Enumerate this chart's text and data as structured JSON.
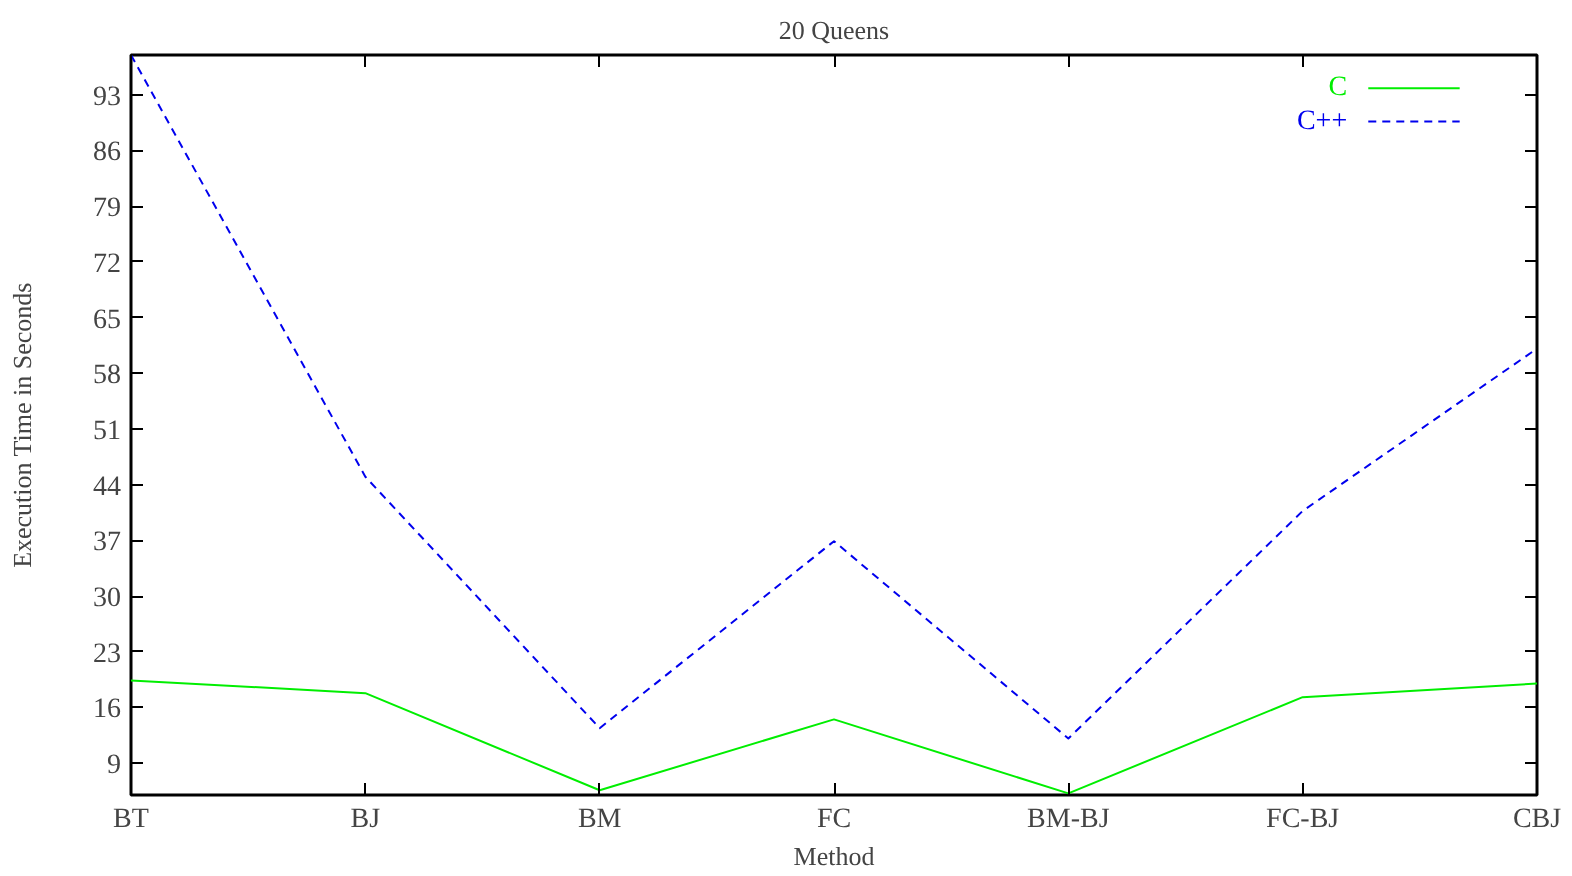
{
  "chart_data": {
    "type": "line",
    "title": "20 Queens",
    "xlabel": "Method",
    "ylabel": "Execution Time in Seconds",
    "categories": [
      "BT",
      "BJ",
      "BM",
      "FC",
      "BM-BJ",
      "FC-BJ",
      "CBJ"
    ],
    "ylim": [
      5,
      98
    ],
    "yticks": [
      9,
      16,
      23,
      30,
      37,
      44,
      51,
      58,
      65,
      72,
      79,
      86,
      93
    ],
    "grid": false,
    "legend": "top right",
    "marker": "none",
    "series": [
      {
        "name": "C",
        "color": "#00ee00",
        "line_style": "solid",
        "values": [
          19.4,
          17.8,
          5.6,
          14.5,
          5.2,
          17.3,
          19.0
        ]
      },
      {
        "name": "C++",
        "color": "#0000ee",
        "line_style": "dashed",
        "values": [
          98,
          45.0,
          13.4,
          36.9,
          12.1,
          40.7,
          61.1
        ]
      }
    ]
  }
}
